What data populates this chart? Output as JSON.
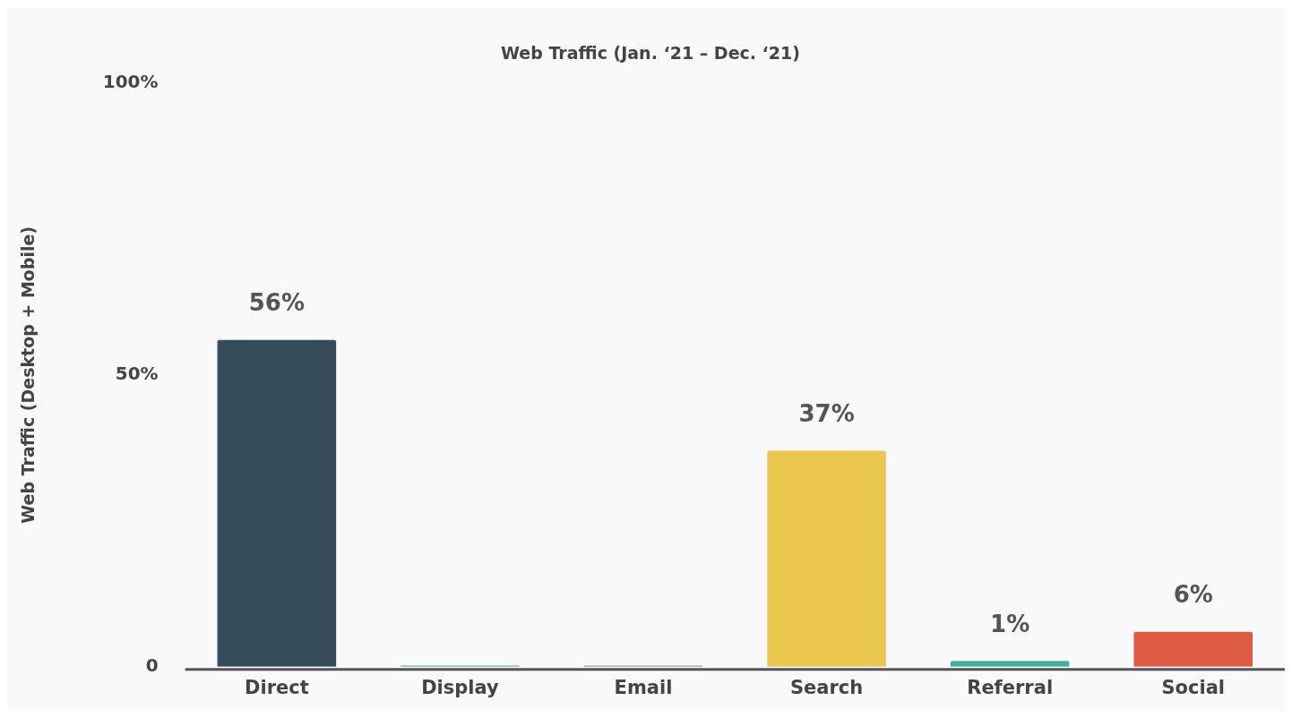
{
  "chart_data": {
    "type": "bar",
    "title": "Web Traffic (Jan. ‘21 – Dec. ‘21)",
    "ylabel": "Web Traffic (Desktop + Mobile)",
    "categories": [
      "Direct",
      "Display",
      "Email",
      "Search",
      "Referral",
      "Social"
    ],
    "values": [
      56,
      0.2,
      0.2,
      37,
      1,
      6
    ],
    "colors": [
      "#354d5b",
      "#5aaa8e",
      "#8e84ac",
      "#ecc74f",
      "#43af98",
      "#df5c42"
    ],
    "value_labels": [
      "56%",
      null,
      null,
      "37%",
      "1%",
      "6%"
    ],
    "ylim": [
      0,
      100
    ],
    "yticks": [
      {
        "value": 0,
        "label": "0"
      },
      {
        "value": 50,
        "label": "50%"
      },
      {
        "value": 100,
        "label": "100%"
      }
    ],
    "grid": false,
    "legend": false
  }
}
